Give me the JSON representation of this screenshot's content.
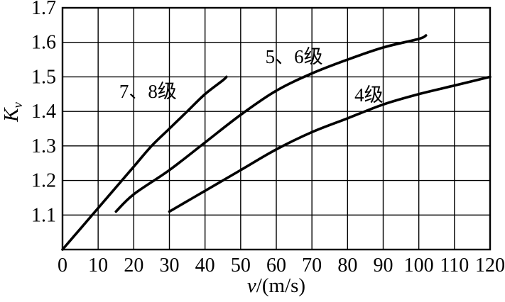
{
  "figure": {
    "background_color": "#ffffff",
    "line_color": "#000000"
  },
  "chart_data": {
    "type": "line",
    "title": "",
    "xlabel": "v/(m/s)",
    "xlabel_italic": "v",
    "xlabel_rest": "/(m/s)",
    "ylabel": "Kv",
    "ylabel_main": "K",
    "ylabel_sub": "v",
    "xlim": [
      0,
      120
    ],
    "ylim": [
      1.0,
      1.7
    ],
    "x_ticks": [
      0,
      10,
      20,
      30,
      40,
      50,
      60,
      70,
      80,
      90,
      100,
      110,
      120
    ],
    "y_ticks": [
      1.1,
      1.2,
      1.3,
      1.4,
      1.5,
      1.6,
      1.7
    ],
    "grid": true,
    "legend_position": "inline-labels",
    "series": [
      {
        "name": "7、8级",
        "points": [
          [
            0,
            1.0
          ],
          [
            5,
            1.06
          ],
          [
            10,
            1.12
          ],
          [
            15,
            1.18
          ],
          [
            20,
            1.24
          ],
          [
            25,
            1.3
          ],
          [
            30,
            1.35
          ],
          [
            35,
            1.4
          ],
          [
            40,
            1.45
          ],
          [
            45,
            1.49
          ],
          [
            46,
            1.5
          ]
        ],
        "label": {
          "text": "7、8级",
          "x": 24,
          "y": 1.46
        }
      },
      {
        "name": "5、6级",
        "points": [
          [
            15,
            1.11
          ],
          [
            20,
            1.16
          ],
          [
            30,
            1.23
          ],
          [
            40,
            1.31
          ],
          [
            50,
            1.39
          ],
          [
            60,
            1.46
          ],
          [
            70,
            1.51
          ],
          [
            80,
            1.55
          ],
          [
            90,
            1.585
          ],
          [
            100,
            1.61
          ],
          [
            102,
            1.62
          ]
        ],
        "label": {
          "text": "5、6级",
          "x": 65,
          "y": 1.56
        }
      },
      {
        "name": "4级",
        "points": [
          [
            30,
            1.11
          ],
          [
            40,
            1.17
          ],
          [
            50,
            1.23
          ],
          [
            60,
            1.29
          ],
          [
            70,
            1.34
          ],
          [
            80,
            1.38
          ],
          [
            90,
            1.42
          ],
          [
            100,
            1.45
          ],
          [
            110,
            1.475
          ],
          [
            120,
            1.5
          ]
        ],
        "label": {
          "text": "4级",
          "x": 86,
          "y": 1.45
        }
      }
    ]
  }
}
